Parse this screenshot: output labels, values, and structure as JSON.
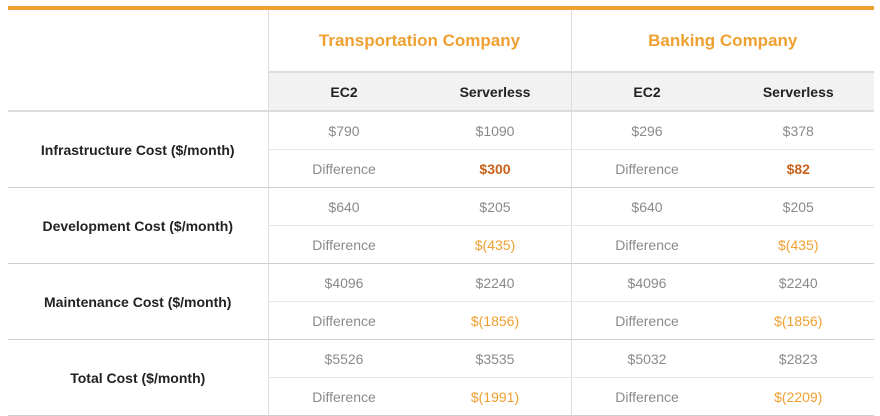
{
  "columns": {
    "companies": [
      "Transportation Company",
      "Banking Company"
    ],
    "sub_headers": [
      "EC2",
      "Serverless",
      "EC2",
      "Serverless"
    ]
  },
  "rows": [
    {
      "label": "Infrastructure Cost ($/month)",
      "values": [
        "$790",
        "$1090",
        "$296",
        "$378"
      ],
      "differences": [
        "Difference",
        "$300",
        "Difference",
        "$82"
      ]
    },
    {
      "label": "Development Cost ($/month)",
      "values": [
        "$640",
        "$205",
        "$640",
        "$205"
      ],
      "differences": [
        "Difference",
        "$(435)",
        "Difference",
        "$(435)"
      ]
    },
    {
      "label": "Maintenance Cost ($/month)",
      "values": [
        "$4096",
        "$2240",
        "$4096",
        "$2240"
      ],
      "differences": [
        "Difference",
        "$(1856)",
        "Difference",
        "$(1856)"
      ]
    },
    {
      "label": "Total Cost ($/month)",
      "values": [
        "$5526",
        "$3535",
        "$5032",
        "$2823"
      ],
      "differences": [
        "Difference",
        "$(1991)",
        "Difference",
        "$(2209)"
      ]
    }
  ],
  "colors": {
    "accent": "#f0a030",
    "positive_difference": "#c9621a",
    "muted_text": "#8a8a8a"
  }
}
